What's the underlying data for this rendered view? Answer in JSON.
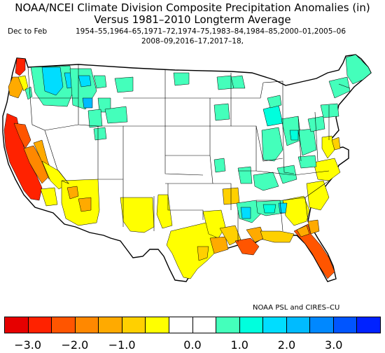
{
  "header": {
    "title_line1": "NOAA/NCEI Climate Division Composite Precipitation Anomalies (in)",
    "title_line2": "Versus 1981–2010 Longterm Average",
    "season_label": "Dec to Feb",
    "years_line1": "1954–55,1964–65,1971–72,1974–75,1983–84,1984–85,2000–01,2005–06",
    "years_line2": "2008–09,2016–17,2017–18,"
  },
  "credit": "NOAA PSL and CIRES–CU",
  "colorbar": {
    "colors": [
      "#e60000",
      "#ff2200",
      "#ff5500",
      "#ff8800",
      "#ffaa00",
      "#ffd000",
      "#ffff00",
      "#ffffff",
      "#ffffff",
      "#44ffbb",
      "#00ffdd",
      "#00ddff",
      "#00bbff",
      "#0088ff",
      "#0055ff",
      "#0022ff"
    ],
    "tick_labels": [
      "−3.0",
      "−2.0",
      "−1.0",
      "0.0",
      "1.0",
      "2.0",
      "3.0"
    ]
  }
}
